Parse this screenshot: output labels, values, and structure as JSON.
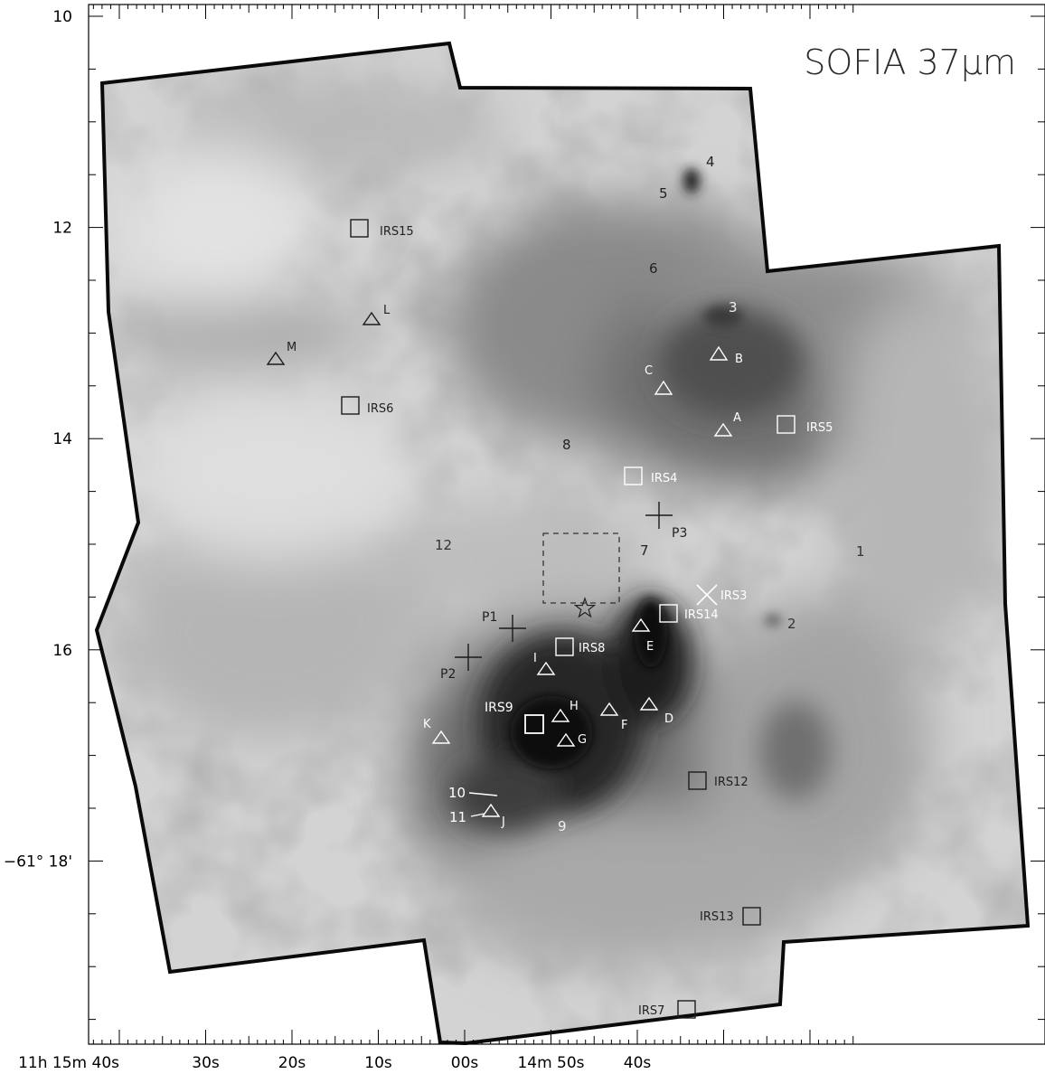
{
  "figure_title": "SOFIA 37μm",
  "axes": {
    "dec_labels": [
      {
        "text": "10",
        "arcmin": 10
      },
      {
        "text": "12",
        "arcmin": 12
      },
      {
        "text": "14",
        "arcmin": 14
      },
      {
        "text": "16",
        "arcmin": 16
      },
      {
        "text": "−61° 18'",
        "arcmin": 18
      }
    ],
    "ra_labels": [
      {
        "text": "11h 15m 40s",
        "sec": 40
      },
      {
        "text": "30s",
        "sec": 30
      },
      {
        "text": "20s",
        "sec": 20
      },
      {
        "text": "10s",
        "sec": 10
      },
      {
        "text": "00s",
        "sec": 0
      },
      {
        "text": "14m 50s",
        "sec": -10
      },
      {
        "text": "40s",
        "sec": -20
      }
    ]
  },
  "labels": {
    "numbers": [
      "1",
      "2",
      "3",
      "4",
      "5",
      "6",
      "7",
      "8",
      "9",
      "10",
      "11",
      "12"
    ],
    "irs_squares": [
      "IRS15",
      "IRS6",
      "IRS5",
      "IRS4",
      "IRS14",
      "IRS8",
      "IRS9",
      "IRS12",
      "IRS13",
      "IRS7"
    ],
    "irs3_x": "IRS3",
    "triangles": [
      "A",
      "B",
      "C",
      "D",
      "E",
      "F",
      "G",
      "H",
      "I",
      "J",
      "K",
      "L",
      "M"
    ],
    "crosses": [
      "P1",
      "P2",
      "P3"
    ]
  },
  "colors": {
    "frame": "#000000",
    "image_border": "#0a0a0a",
    "background": "#d2d2d2",
    "dark_emission": "#111111",
    "white_markers": "#ffffff",
    "dark_markers": "#1c1c1c"
  }
}
